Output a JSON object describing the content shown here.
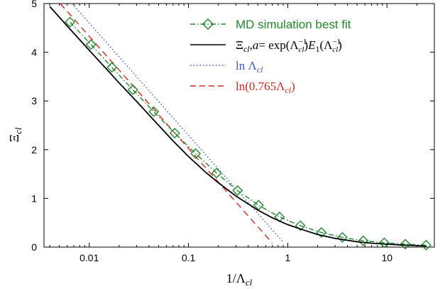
{
  "chart_data": {
    "type": "line",
    "xscale": "log",
    "xlim": [
      0.0035,
      30
    ],
    "ylim": [
      0,
      5
    ],
    "x_ticks": [
      0.01,
      0.1,
      1,
      10
    ],
    "x_tick_labels": [
      "0.01",
      "0.1",
      "1",
      "10"
    ],
    "y_ticks": [
      0,
      1,
      2,
      3,
      4,
      5
    ],
    "y_tick_labels": [
      "0",
      "1",
      "2",
      "3",
      "4",
      "5"
    ],
    "xlabel": "1/Λ_cl",
    "ylabel": "Ξ_cl",
    "grid": false,
    "legend_position": "top-right",
    "series": [
      {
        "name": "MD simulation best fit",
        "color": "#1f8a2a",
        "style": "dash-dot",
        "marker": "diamond",
        "x": [
          0.0064,
          0.0104,
          0.0169,
          0.0275,
          0.0447,
          0.0727,
          0.118,
          0.192,
          0.312,
          0.508,
          0.826,
          1.34,
          2.18,
          3.55,
          5.77,
          9.38,
          15.3,
          24.8
        ],
        "y": [
          4.62,
          4.16,
          3.69,
          3.23,
          2.78,
          2.34,
          1.92,
          1.52,
          1.16,
          0.86,
          0.62,
          0.44,
          0.3,
          0.2,
          0.13,
          0.09,
          0.06,
          0.04
        ]
      },
      {
        "name": "Ξ_cl,a = exp(Λ_cl^−1) E_1(Λ_cl^−1)",
        "color": "#000000",
        "style": "solid",
        "x": [
          0.004,
          0.006,
          0.01,
          0.015,
          0.02,
          0.03,
          0.05,
          0.07,
          0.1,
          0.15,
          0.2,
          0.3,
          0.5,
          0.7,
          1,
          1.5,
          2,
          3,
          5,
          7,
          10,
          15,
          20,
          25
        ],
        "y": [
          4.94,
          4.54,
          4.04,
          3.65,
          3.37,
          2.99,
          2.5,
          2.18,
          1.86,
          1.53,
          1.32,
          1.05,
          0.76,
          0.6,
          0.46,
          0.34,
          0.26,
          0.18,
          0.11,
          0.08,
          0.06,
          0.04,
          0.03,
          0.02
        ]
      },
      {
        "name": "ln Λ_cl",
        "color": "#3b56c8",
        "style": "dotted",
        "x": [
          0.0067,
          0.9
        ],
        "y": [
          5.0,
          0.1
        ]
      },
      {
        "name": "ln(0.765 Λ_cl)",
        "color": "#e0251b",
        "style": "dashed",
        "x": [
          0.0051,
          0.7
        ],
        "y": [
          5.0,
          0.08
        ]
      }
    ]
  }
}
